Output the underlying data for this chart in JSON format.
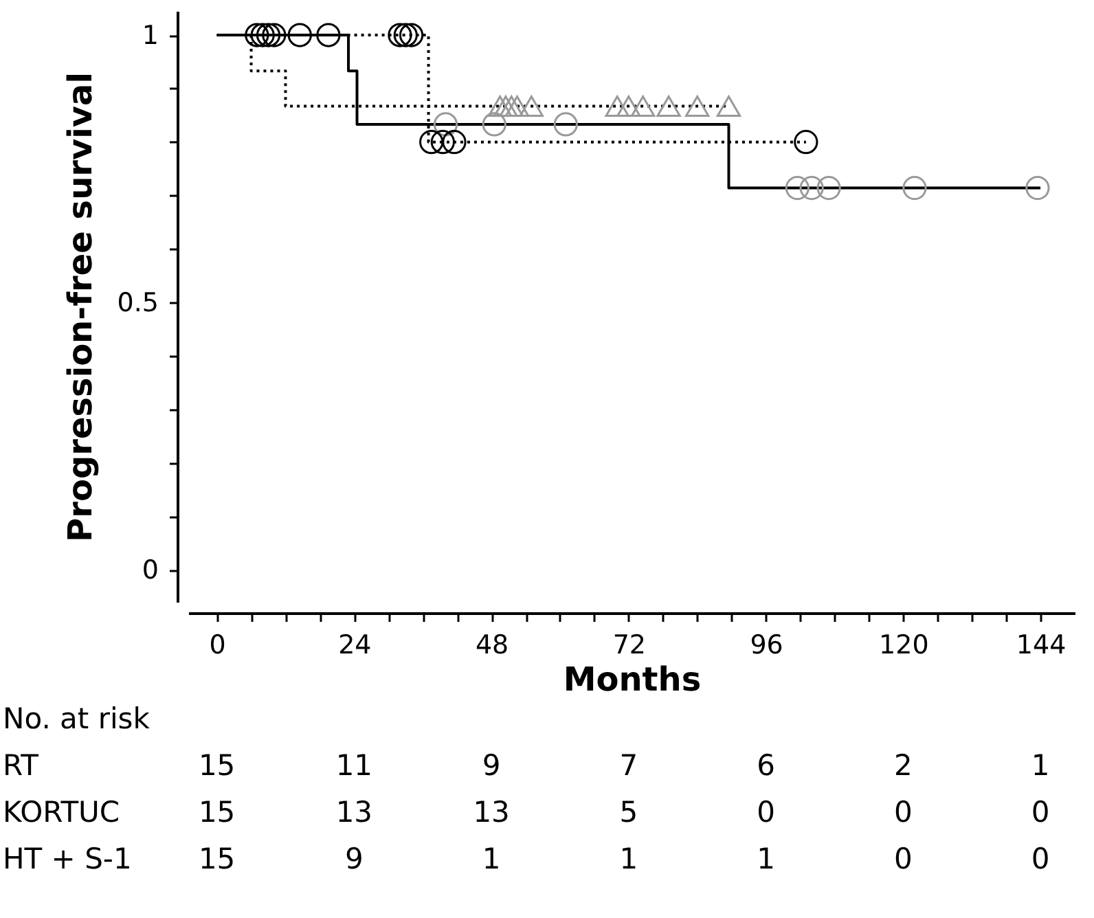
{
  "chart_data": {
    "type": "step",
    "xlabel": "Months",
    "ylabel": "Progression-free survival",
    "xlim": [
      -5,
      150
    ],
    "ylim": [
      -0.06,
      1.045
    ],
    "xticks": [
      0,
      {
        "value": 6,
        "label": null
      },
      {
        "value": 12,
        "label": null
      },
      {
        "value": 18,
        "label": null
      },
      24,
      {
        "value": 30,
        "label": null
      },
      {
        "value": 36,
        "label": null
      },
      {
        "value": 42,
        "label": null
      },
      48,
      {
        "value": 54,
        "label": null
      },
      {
        "value": 60,
        "label": null
      },
      {
        "value": 66,
        "label": null
      },
      72,
      {
        "value": 78,
        "label": null
      },
      {
        "value": 84,
        "label": null
      },
      {
        "value": 90,
        "label": null
      },
      96,
      {
        "value": 102,
        "label": null
      },
      {
        "value": 108,
        "label": null
      },
      {
        "value": 114,
        "label": null
      },
      120,
      {
        "value": 126,
        "label": null
      },
      {
        "value": 132,
        "label": null
      },
      {
        "value": 138,
        "label": null
      },
      144
    ],
    "yticks": [
      0,
      {
        "value": 0.1,
        "label": null
      },
      {
        "value": 0.2,
        "label": null
      },
      {
        "value": 0.3,
        "label": null
      },
      {
        "value": 0.4,
        "label": null
      },
      0.5,
      {
        "value": 0.6,
        "label": null
      },
      {
        "value": 0.7,
        "label": null
      },
      {
        "value": 0.8,
        "label": null
      },
      {
        "value": 0.9,
        "label": null
      },
      1
    ],
    "grid": false,
    "series": [
      {
        "color": "#000000",
        "line_style": "solid",
        "x": [
          0,
          23,
          24.5,
          89.5,
          144
        ],
        "values": [
          1,
          0.933,
          0.833,
          0.714,
          0.714
        ]
      },
      {
        "color": "#000000",
        "line_style": "dotted",
        "x": [
          0,
          6,
          12,
          89.5
        ],
        "values": [
          1,
          0.933,
          0.867,
          0.867
        ]
      },
      {
        "color": "#000000",
        "line_style": "dotted",
        "x": [
          0,
          37,
          103
        ],
        "values": [
          1,
          0.8,
          0.8
        ]
      },
      {
        "type": "scatter",
        "color": "#999999",
        "marker": "circle",
        "x": [
          40,
          48.5,
          61,
          101.5,
          104,
          107,
          122,
          143.5
        ],
        "values": [
          0.833,
          0.833,
          0.833,
          0.714,
          0.714,
          0.714,
          0.714,
          0.714
        ]
      },
      {
        "type": "scatter",
        "color": "#999999",
        "marker": "triangle",
        "x": [
          49.5,
          50.5,
          51.5,
          52.5,
          55,
          70,
          72,
          74.5,
          79,
          84,
          89.5
        ],
        "values": [
          0.867,
          0.867,
          0.867,
          0.867,
          0.867,
          0.867,
          0.867,
          0.867,
          0.867,
          0.867,
          0.867
        ]
      },
      {
        "type": "scatter",
        "color": "#000000",
        "marker": "circle",
        "x": [
          7,
          8,
          9,
          10,
          14.5,
          19.5,
          32,
          33,
          34,
          37.5,
          39.5,
          41.5,
          103
        ],
        "values": [
          1,
          1,
          1,
          1,
          1,
          1,
          1,
          1,
          1,
          0.8,
          0.8,
          0.8,
          0.8
        ]
      }
    ],
    "annotations": [
      "No. at risk",
      "RT",
      "15",
      "11",
      "9",
      "7",
      "6",
      "2",
      "1",
      "KORTUC",
      "15",
      "13",
      "13",
      "5",
      "0",
      "0",
      "0",
      "HT + S-1",
      "15",
      "9",
      "1",
      "1",
      "1",
      "0",
      "0"
    ]
  }
}
